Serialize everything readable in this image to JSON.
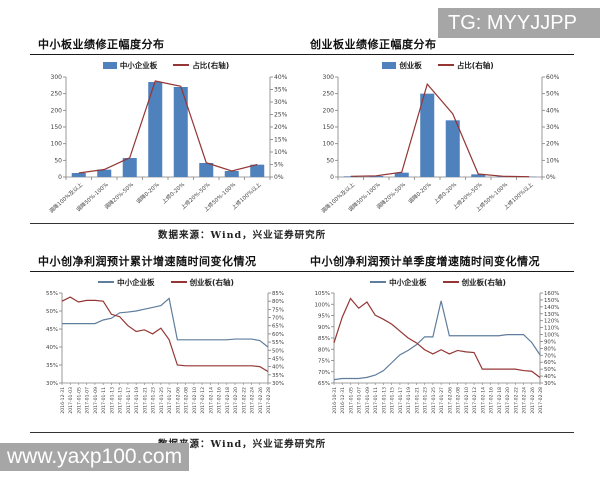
{
  "watermarks": {
    "telegram": "TG: MYYJJPP",
    "site": "www.yaxp100.com"
  },
  "captions": {
    "source_top": "数据来源：Wind，兴业证券研究所",
    "source_bottom": "数据来源：Wind，兴业证券研究所"
  },
  "colors": {
    "bar_blue": "#4f81bd",
    "dark_red": "#943634",
    "line_blue": "#5f7d9c",
    "axis": "#808080",
    "watermark_bg": "#a6a6a6"
  },
  "chart_data": [
    {
      "type": "bar_line",
      "title": "中小板业绩修正幅度分布",
      "categories": [
        "调降100%及以上",
        "调降50%-100%",
        "调降20%-50%",
        "调降0-20%",
        "上修0-20%",
        "上修20%-50%",
        "上修50%-100%",
        "上修100%以上"
      ],
      "bars": {
        "name": "中小企业板",
        "color": "#4f81bd",
        "values": [
          12,
          22,
          57,
          285,
          270,
          42,
          18,
          37
        ]
      },
      "line": {
        "name": "占比(右轴)",
        "color": "#943634",
        "values": [
          1.6,
          3.0,
          7.7,
          38.4,
          36.3,
          5.7,
          2.4,
          5.0
        ]
      },
      "left_axis": {
        "min": 0,
        "max": 300,
        "step": 50,
        "suffix": ""
      },
      "right_axis": {
        "min": 0,
        "max": 40,
        "step": 5,
        "suffix": "%"
      }
    },
    {
      "type": "bar_line",
      "title": "创业板业绩修正幅度分布",
      "categories": [
        "调降100%及以上",
        "调降50%-100%",
        "调降20%-50%",
        "调降0-20%",
        "上修0-20%",
        "上修20%-50%",
        "上修50%-100%",
        "上修100%以上"
      ],
      "bars": {
        "name": "创业板",
        "color": "#4f81bd",
        "values": [
          2,
          3,
          13,
          250,
          170,
          8,
          2,
          1
        ]
      },
      "line": {
        "name": "占比(右轴)",
        "color": "#943634",
        "values": [
          0.4,
          0.7,
          2.9,
          55.7,
          37.9,
          1.8,
          0.4,
          0.2
        ]
      },
      "left_axis": {
        "min": 0,
        "max": 300,
        "step": 50,
        "suffix": ""
      },
      "right_axis": {
        "min": 0,
        "max": 60,
        "step": 10,
        "suffix": "%"
      }
    },
    {
      "type": "dual_line",
      "title": "中小创净利润预计累计增速随时间变化情况",
      "x": [
        "2016-12-31",
        "2017-01-03",
        "2017-01-05",
        "2017-01-07",
        "2017-01-09",
        "2017-01-11",
        "2017-01-13",
        "2017-01-15",
        "2017-01-17",
        "2017-01-19",
        "2017-01-21",
        "2017-01-23",
        "2017-01-25",
        "2017-01-27",
        "2017-02-06",
        "2017-02-08",
        "2017-02-10",
        "2017-02-12",
        "2017-02-14",
        "2017-02-16",
        "2017-02-18",
        "2017-02-20",
        "2017-02-22",
        "2017-02-24",
        "2017-02-26",
        "2017-02-28"
      ],
      "series": [
        {
          "name": "中小企业板",
          "axis": "left",
          "color": "#5f7d9c",
          "values": [
            46.5,
            46.5,
            46.5,
            46.5,
            46.5,
            47.5,
            48,
            49.5,
            49.7,
            50,
            50.5,
            51,
            51.5,
            53.5,
            42,
            42,
            42,
            42,
            42,
            42,
            42,
            42.2,
            42.2,
            42.2,
            41.8,
            40
          ]
        },
        {
          "name": "创业板(右轴)",
          "axis": "right",
          "color": "#943634",
          "values": [
            80,
            82.5,
            79.5,
            80.5,
            80.5,
            80,
            72,
            70.5,
            65,
            61.5,
            62.5,
            60,
            63.5,
            56.5,
            41,
            40.5,
            40.5,
            40.5,
            40.5,
            40.5,
            40.5,
            40.5,
            40.5,
            40.5,
            40,
            37
          ]
        }
      ],
      "left_axis": {
        "min": 30,
        "max": 55,
        "step": 5,
        "suffix": "%"
      },
      "right_axis": {
        "min": 30,
        "max": 85,
        "step": 5,
        "suffix": "%"
      }
    },
    {
      "type": "dual_line",
      "title": "中小创净利润预计单季度增速随时间变化情况",
      "x": [
        "2016-10-31",
        "2016-12-31",
        "2017-01-05",
        "2017-01-07",
        "2017-01-09",
        "2017-01-11",
        "2017-01-13",
        "2017-01-15",
        "2017-01-17",
        "2017-01-19",
        "2017-01-21",
        "2017-01-23",
        "2017-01-25",
        "2017-01-27",
        "2017-02-06",
        "2017-02-08",
        "2017-02-10",
        "2017-02-12",
        "2017-02-14",
        "2017-02-16",
        "2017-02-18",
        "2017-02-20",
        "2017-02-22",
        "2017-02-24",
        "2017-02-26",
        "2017-02-28"
      ],
      "series": [
        {
          "name": "中小企业板",
          "axis": "left",
          "color": "#5f7d9c",
          "values": [
            66.5,
            67,
            67,
            67,
            67.5,
            68.5,
            70.5,
            74,
            77.5,
            79.5,
            82,
            85.5,
            85.5,
            101.5,
            86,
            86,
            86,
            86,
            86,
            86,
            86,
            86.5,
            86.5,
            86.5,
            83,
            77.5
          ]
        },
        {
          "name": "创业板(右轴)",
          "axis": "right",
          "color": "#943634",
          "values": [
            88,
            125,
            152,
            138,
            147,
            128,
            122,
            115,
            105,
            95,
            88,
            78,
            72,
            78,
            72,
            77,
            75,
            74,
            50,
            50,
            50,
            50,
            50,
            48,
            47,
            38
          ]
        }
      ],
      "left_axis": {
        "min": 65,
        "max": 105,
        "step": 5,
        "suffix": "%"
      },
      "right_axis": {
        "min": 30,
        "max": 160,
        "step": 10,
        "suffix": "%"
      }
    }
  ]
}
